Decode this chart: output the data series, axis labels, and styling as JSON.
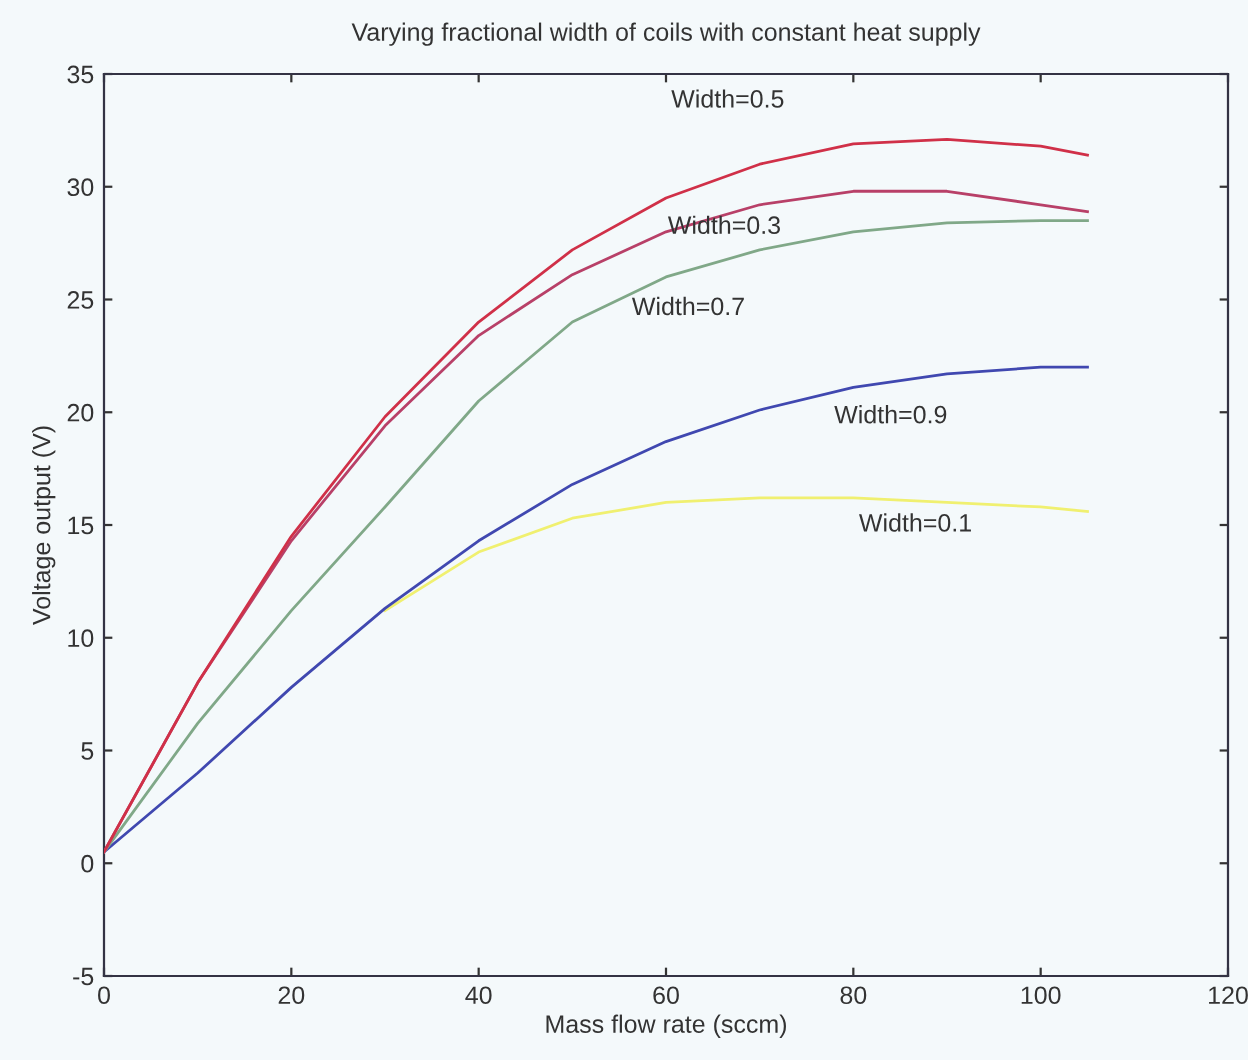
{
  "chart_data": {
    "type": "line",
    "title": "Varying fractional width of coils with constant heat supply",
    "xlabel": "Mass flow rate (sccm)",
    "ylabel": "Voltage output (V)",
    "x": [
      0,
      10,
      20,
      30,
      40,
      50,
      60,
      70,
      80,
      90,
      100,
      105
    ],
    "series": [
      {
        "name": "Width=0.5",
        "color": "#d03048",
        "values": [
          0.5,
          8.0,
          14.5,
          19.8,
          24.0,
          27.2,
          29.5,
          31.0,
          31.9,
          32.1,
          31.8,
          31.4
        ]
      },
      {
        "name": "Width=0.3",
        "color": "#b84068",
        "values": [
          0.5,
          8.0,
          14.3,
          19.4,
          23.4,
          26.1,
          28.0,
          29.2,
          29.8,
          29.8,
          29.2,
          28.9
        ]
      },
      {
        "name": "Width=0.7",
        "color": "#80a888",
        "values": [
          0.5,
          6.2,
          11.2,
          15.8,
          20.5,
          24.0,
          26.0,
          27.2,
          28.0,
          28.4,
          28.5,
          28.5
        ]
      },
      {
        "name": "Width=0.9",
        "color": "#4048b0",
        "values": [
          0.5,
          4.0,
          7.8,
          11.3,
          14.3,
          16.8,
          18.7,
          20.1,
          21.1,
          21.7,
          22.0,
          22.0
        ]
      },
      {
        "name": "Width=0.1",
        "color": "#f0f070",
        "values": [
          null,
          null,
          null,
          11.2,
          13.8,
          15.3,
          16.0,
          16.2,
          16.2,
          16.0,
          15.8,
          15.6
        ]
      }
    ],
    "xlim": [
      0,
      120
    ],
    "xticks": [
      0,
      20,
      40,
      60,
      80,
      100,
      120
    ],
    "ylim": [
      -5,
      35
    ],
    "yticks": [
      -5,
      0,
      5,
      10,
      15,
      20,
      25,
      30,
      35
    ],
    "grid": false,
    "legend": false,
    "marker": "none",
    "line_style": "solid"
  }
}
